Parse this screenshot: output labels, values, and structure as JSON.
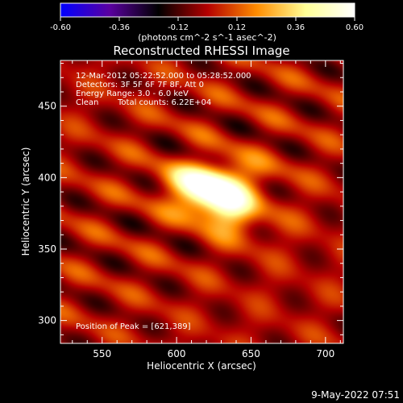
{
  "chart_data": {
    "type": "heatmap",
    "title": "Reconstructed RHESSI Image",
    "xlabel": "Heliocentric X (arcsec)",
    "ylabel": "Heliocentric Y (arcsec)",
    "xlim": [
      522,
      712
    ],
    "ylim": [
      284,
      482
    ],
    "xticks": [
      550,
      600,
      650,
      700
    ],
    "yticks": [
      300,
      350,
      400,
      450
    ],
    "colorbar": {
      "range": [
        -0.6,
        0.6
      ],
      "ticks": [
        -0.6,
        -0.36,
        -0.12,
        0.12,
        0.36,
        0.6
      ],
      "tick_labels": [
        "-0.60",
        "-0.36",
        "-0.12",
        "0.12",
        "0.36",
        "0.60"
      ],
      "unit": "(photons cm^-2 s^-1 asec^-2)",
      "colors": [
        "#0000ff",
        "#5a00a0",
        "#000000",
        "#b40000",
        "#ff8c00",
        "#ffff96",
        "#ffffff"
      ]
    },
    "annotations": {
      "time": "12-Mar-2012 05:22:52.000 to 05:28:52.000",
      "detectors": "Detectors: 3F 5F 6F 7F 8F, Att 0",
      "energy": "Energy Range: 3.0 - 6.0 keV",
      "clean": "Clean",
      "counts": "Total counts: 6.22E+04",
      "peak": "Position of Peak = [621,389]"
    },
    "peak": {
      "x": 621,
      "y": 389,
      "value": 0.6
    },
    "sources": [
      {
        "x": 621,
        "y": 389,
        "sx": 14,
        "sy": 11,
        "amp": 0.6
      },
      {
        "x": 637,
        "y": 380,
        "sx": 11,
        "sy": 12,
        "amp": 0.32
      },
      {
        "x": 607,
        "y": 398,
        "sx": 16,
        "sy": 8,
        "amp": 0.18
      },
      {
        "x": 640,
        "y": 404,
        "sx": 20,
        "sy": 9,
        "amp": 0.12
      },
      {
        "x": 652,
        "y": 372,
        "sx": 18,
        "sy": 14,
        "amp": 0.07
      }
    ]
  },
  "footer": {
    "date": "9-May-2022 07:51"
  }
}
